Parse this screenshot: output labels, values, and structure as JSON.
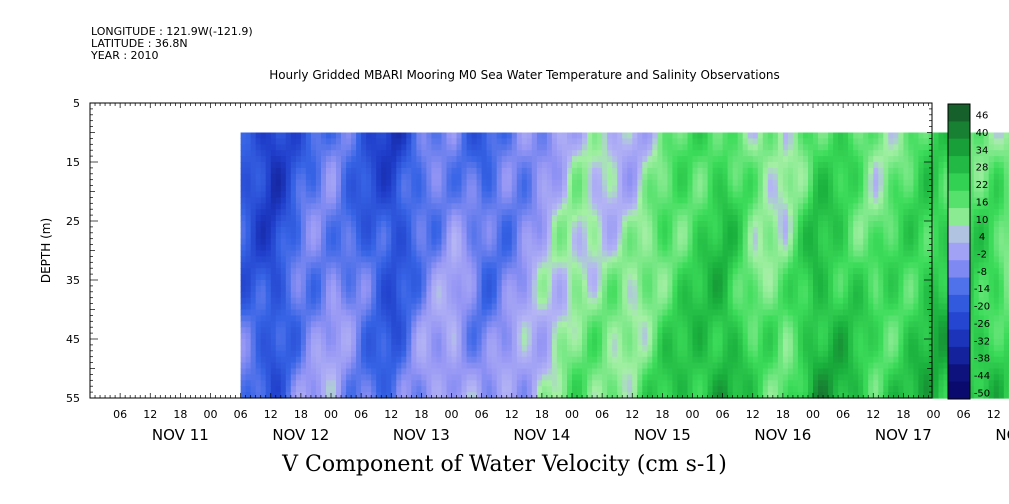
{
  "header": {
    "longitude": "LONGITUDE : 121.9W(-121.9)",
    "latitude": "LATITUDE : 36.8N",
    "year": "YEAR : 2010"
  },
  "chart_data": {
    "type": "heatmap",
    "title": "Hourly Gridded MBARI Mooring M0 Sea Water Temperature and Salinity Observations",
    "xlabel": "V Component of Water Velocity (cm s-1)",
    "ylabel": "DEPTH (m)",
    "ylim": [
      55,
      5
    ],
    "yticks": [
      5,
      15,
      25,
      35,
      45,
      55
    ],
    "x_hour_ticks": [
      "06",
      "12",
      "18",
      "00",
      "06",
      "12",
      "18",
      "00",
      "06",
      "12",
      "18",
      "00",
      "06",
      "12",
      "18",
      "00",
      "06",
      "12",
      "18",
      "00",
      "06",
      "12",
      "18",
      "00",
      "06",
      "12",
      "18",
      "00",
      "06",
      "12",
      "18",
      "00"
    ],
    "x_day_labels": [
      "NOV 11",
      "NOV 12",
      "NOV 13",
      "NOV 14",
      "NOV 15",
      "NOV 16",
      "NOV 17",
      "NOV 18"
    ],
    "data_depth_range": [
      10,
      55
    ],
    "colorbar_levels": [
      "46",
      "40",
      "34",
      "28",
      "22",
      "16",
      "10",
      "4",
      "-2",
      "-8",
      "-14",
      "-20",
      "-26",
      "-32",
      "-38",
      "-44",
      "-50"
    ],
    "colors": {
      "negative": "#2f5fe0",
      "weak_negative": "#a8acf0",
      "weak_positive": "#a8f0a8",
      "positive": "#22d44a"
    },
    "time_pattern_cm_s": [
      {
        "date": "NOV 11 12:00",
        "value": -22
      },
      {
        "date": "NOV 11 18:00",
        "value": -30
      },
      {
        "date": "NOV 12 00:00",
        "value": -16
      },
      {
        "date": "NOV 12 06:00",
        "value": -12
      },
      {
        "date": "NOV 12 12:00",
        "value": -20
      },
      {
        "date": "NOV 12 18:00",
        "value": -28
      },
      {
        "date": "NOV 13 00:00",
        "value": -14
      },
      {
        "date": "NOV 13 06:00",
        "value": -8
      },
      {
        "date": "NOV 13 12:00",
        "value": -18
      },
      {
        "date": "NOV 13 18:00",
        "value": -12
      },
      {
        "date": "NOV 14 06:00",
        "value": 4
      },
      {
        "date": "NOV 14 18:00",
        "value": 2
      },
      {
        "date": "NOV 15 00:00",
        "value": 12
      },
      {
        "date": "NOV 15 12:00",
        "value": 22
      },
      {
        "date": "NOV 15 18:00",
        "value": 8
      },
      {
        "date": "NOV 16 00:00",
        "value": 6
      },
      {
        "date": "NOV 16 06:00",
        "value": 22
      },
      {
        "date": "NOV 16 12:00",
        "value": 18
      },
      {
        "date": "NOV 16 18:00",
        "value": 10
      },
      {
        "date": "NOV 17 06:00",
        "value": 20
      },
      {
        "date": "NOV 17 18:00",
        "value": 14
      },
      {
        "date": "NOV 18 00:00",
        "value": 2
      }
    ]
  }
}
